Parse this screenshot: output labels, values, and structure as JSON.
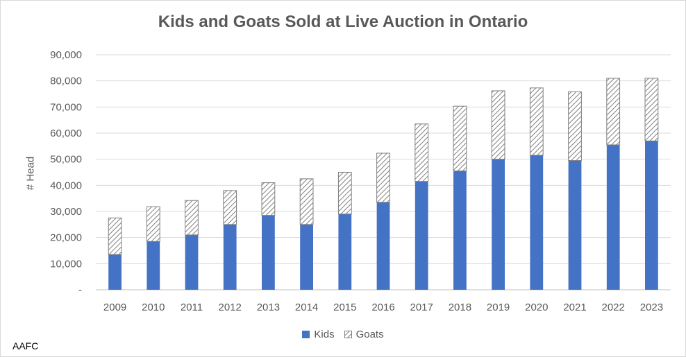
{
  "chart_data": {
    "type": "bar",
    "stacked": true,
    "title": "Kids and Goats Sold at Live Auction in Ontario",
    "xlabel": "",
    "ylabel": "# Head",
    "ylim": [
      0,
      90000
    ],
    "yticks": [
      "-",
      "10,000",
      "20,000",
      "30,000",
      "40,000",
      "50,000",
      "60,000",
      "70,000",
      "80,000",
      "90,000"
    ],
    "categories": [
      "2009",
      "2010",
      "2011",
      "2012",
      "2013",
      "2014",
      "2015",
      "2016",
      "2017",
      "2018",
      "2019",
      "2020",
      "2021",
      "2022",
      "2023"
    ],
    "series": [
      {
        "name": "Kids",
        "values": [
          13500,
          18500,
          21000,
          25000,
          28500,
          25000,
          29000,
          33500,
          41500,
          45500,
          50000,
          51500,
          49500,
          55500,
          57000
        ]
      },
      {
        "name": "Goats",
        "values": [
          14000,
          13300,
          13200,
          13000,
          12500,
          17500,
          16000,
          18800,
          22000,
          24800,
          26200,
          25800,
          26300,
          25500,
          24000
        ]
      }
    ],
    "grid": true,
    "legend_position": "bottom",
    "colors": {
      "Kids": "#4472C4",
      "Goats_hatch": "#7f7f7f",
      "grid": "#d9d9d9"
    }
  },
  "source": "AAFC"
}
